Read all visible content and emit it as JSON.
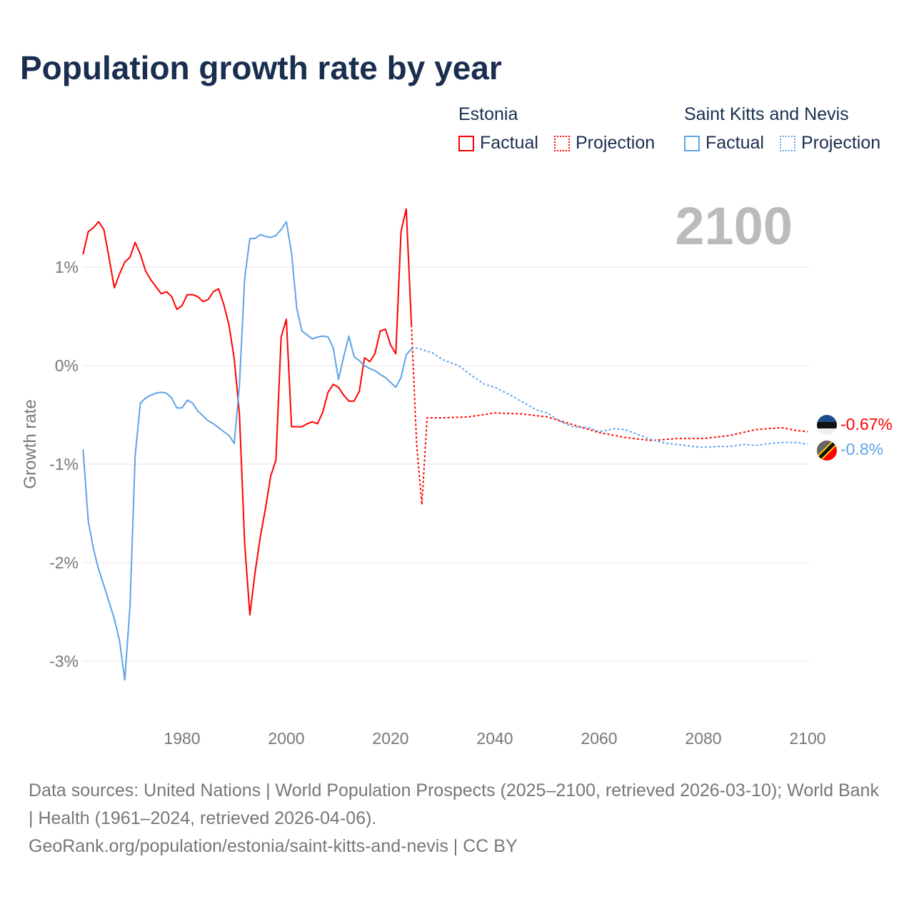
{
  "title": "Population growth rate by year",
  "legend": {
    "groups": [
      {
        "name": "Estonia",
        "color": "#ff0000",
        "factual": "Factual",
        "projection": "Projection"
      },
      {
        "name": "Saint Kitts and Nevis",
        "color": "#5ea3e8",
        "factual": "Factual",
        "projection": "Projection"
      }
    ]
  },
  "year_label": "2100",
  "end_labels": {
    "estonia": "-0.67%",
    "skn": "-0.8%"
  },
  "footer": {
    "sources": "Data sources: United Nations | World Population Prospects (2025–2100, retrieved 2026-03-10); World Bank | Health (1961–2024, retrieved 2026-04-06).",
    "url": "GeoRank.org/population/estonia/saint-kitts-and-nevis | CC BY"
  },
  "chart_data": {
    "type": "line",
    "title": "Population growth rate by year",
    "xlabel": "",
    "ylabel": "Growth rate",
    "xlim": [
      1961,
      2100
    ],
    "ylim": [
      -3.4,
      1.7
    ],
    "xticks": [
      "1980",
      "2000",
      "2020",
      "2040",
      "2060",
      "2080",
      "2100"
    ],
    "yticks": [
      {
        "v": 1,
        "label": "1%"
      },
      {
        "v": 0,
        "label": "0%"
      },
      {
        "v": -1,
        "label": "-1%"
      },
      {
        "v": -2,
        "label": "-2%"
      },
      {
        "v": -3,
        "label": "-3%"
      }
    ],
    "series": [
      {
        "name": "Estonia",
        "kind": "factual",
        "color": "#ff0000",
        "start": 1961,
        "values": [
          1.13,
          1.36,
          1.4,
          1.46,
          1.38,
          1.09,
          0.79,
          0.93,
          1.05,
          1.1,
          1.25,
          1.13,
          0.96,
          0.87,
          0.8,
          0.73,
          0.75,
          0.7,
          0.57,
          0.61,
          0.72,
          0.72,
          0.7,
          0.65,
          0.67,
          0.75,
          0.78,
          0.62,
          0.41,
          0.07,
          -0.49,
          -1.8,
          -2.53,
          -2.1,
          -1.74,
          -1.45,
          -1.12,
          -0.96,
          0.29,
          0.47,
          -0.62,
          -0.62,
          -0.62,
          -0.59,
          -0.57,
          -0.59,
          -0.47,
          -0.27,
          -0.19,
          -0.22,
          -0.3,
          -0.36,
          -0.36,
          -0.26,
          0.08,
          0.04,
          0.12,
          0.35,
          0.37,
          0.21,
          0.12,
          1.36,
          1.59,
          0.41
        ]
      },
      {
        "name": "Estonia",
        "kind": "projection",
        "color": "#ff0000",
        "x": [
          2024,
          2025,
          2026,
          2027,
          2030,
          2035,
          2040,
          2045,
          2050,
          2055,
          2060,
          2065,
          2070,
          2075,
          2080,
          2085,
          2090,
          2095,
          2098,
          2100
        ],
        "values": [
          0.41,
          -0.8,
          -1.41,
          -0.53,
          -0.53,
          -0.52,
          -0.48,
          -0.49,
          -0.52,
          -0.6,
          -0.68,
          -0.73,
          -0.76,
          -0.74,
          -0.74,
          -0.71,
          -0.65,
          -0.63,
          -0.66,
          -0.67
        ]
      },
      {
        "name": "Saint Kitts and Nevis",
        "kind": "factual",
        "color": "#5ea3e8",
        "start": 1961,
        "values": [
          -0.85,
          -1.58,
          -1.86,
          -2.07,
          -2.23,
          -2.4,
          -2.57,
          -2.79,
          -3.19,
          -2.45,
          -0.91,
          -0.38,
          -0.33,
          -0.3,
          -0.28,
          -0.27,
          -0.28,
          -0.33,
          -0.43,
          -0.43,
          -0.35,
          -0.38,
          -0.46,
          -0.51,
          -0.56,
          -0.59,
          -0.63,
          -0.67,
          -0.71,
          -0.79,
          -0.2,
          0.88,
          1.29,
          1.29,
          1.33,
          1.31,
          1.3,
          1.32,
          1.38,
          1.46,
          1.14,
          0.58,
          0.35,
          0.31,
          0.27,
          0.29,
          0.3,
          0.29,
          0.18,
          -0.14,
          0.09,
          0.3,
          0.09,
          0.05,
          0.0,
          -0.03,
          -0.05,
          -0.09,
          -0.12,
          -0.17,
          -0.22,
          -0.12,
          0.11,
          0.17
        ]
      },
      {
        "name": "Saint Kitts and Nevis",
        "kind": "projection",
        "color": "#5ea3e8",
        "x": [
          2024,
          2025,
          2028,
          2030,
          2033,
          2035,
          2038,
          2040,
          2043,
          2045,
          2048,
          2050,
          2053,
          2055,
          2058,
          2060,
          2063,
          2065,
          2068,
          2070,
          2073,
          2075,
          2078,
          2080,
          2083,
          2085,
          2088,
          2090,
          2093,
          2095,
          2098,
          2100
        ],
        "values": [
          0.17,
          0.18,
          0.13,
          0.06,
          0.0,
          -0.08,
          -0.19,
          -0.22,
          -0.3,
          -0.36,
          -0.45,
          -0.48,
          -0.58,
          -0.62,
          -0.63,
          -0.67,
          -0.64,
          -0.65,
          -0.71,
          -0.75,
          -0.79,
          -0.8,
          -0.82,
          -0.83,
          -0.82,
          -0.82,
          -0.8,
          -0.81,
          -0.79,
          -0.78,
          -0.78,
          -0.8
        ]
      }
    ]
  }
}
